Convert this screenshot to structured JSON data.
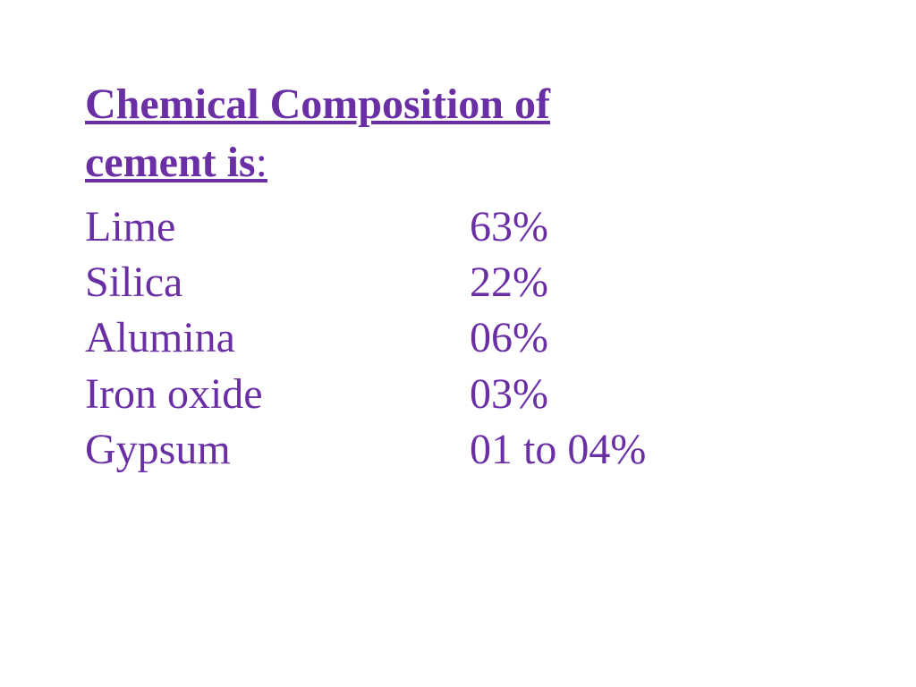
{
  "title_color": "#6a2fa5",
  "text_color": "#6a2fa5",
  "title": {
    "line1": "Chemical Composition of",
    "line2_underlined": "cement is",
    "line2_colon": ":"
  },
  "composition": [
    {
      "label": "Lime",
      "value": "63%"
    },
    {
      "label": "Silica",
      "value": "22%"
    },
    {
      "label": "Alumina",
      "value": "06%"
    },
    {
      "label": "Iron oxide",
      "value": "03%"
    },
    {
      "label": "Gypsum",
      "value": "01 to 04%"
    }
  ]
}
